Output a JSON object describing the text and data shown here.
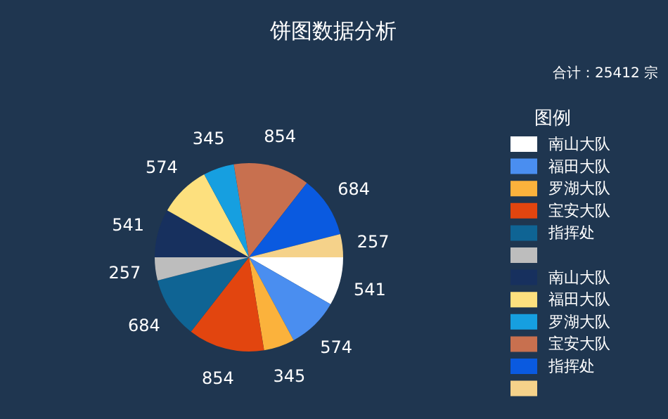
{
  "chart_data": {
    "type": "pie",
    "title": "饼图数据分析",
    "subtitle": "合计：25412 宗",
    "legend_title": "图例",
    "legend": "right",
    "data_labels": true,
    "categories": [
      "南山大队",
      "福田大队",
      "罗湖大队",
      "宝安大队",
      "指挥处",
      null,
      "南山大队",
      "福田大队",
      "罗湖大队",
      "宝安大队",
      "指挥处",
      null
    ],
    "values": [
      541,
      574,
      345,
      854,
      684,
      257,
      541,
      574,
      345,
      854,
      684,
      257
    ],
    "colors": [
      "#ffffff",
      "#4a8ef0",
      "#fbb23c",
      "#e2450f",
      "#0f6494",
      "#bdbdbd",
      "#17305e",
      "#fde07e",
      "#169fe0",
      "#c8704f",
      "#0a5ae0",
      "#f5d28a"
    ]
  }
}
